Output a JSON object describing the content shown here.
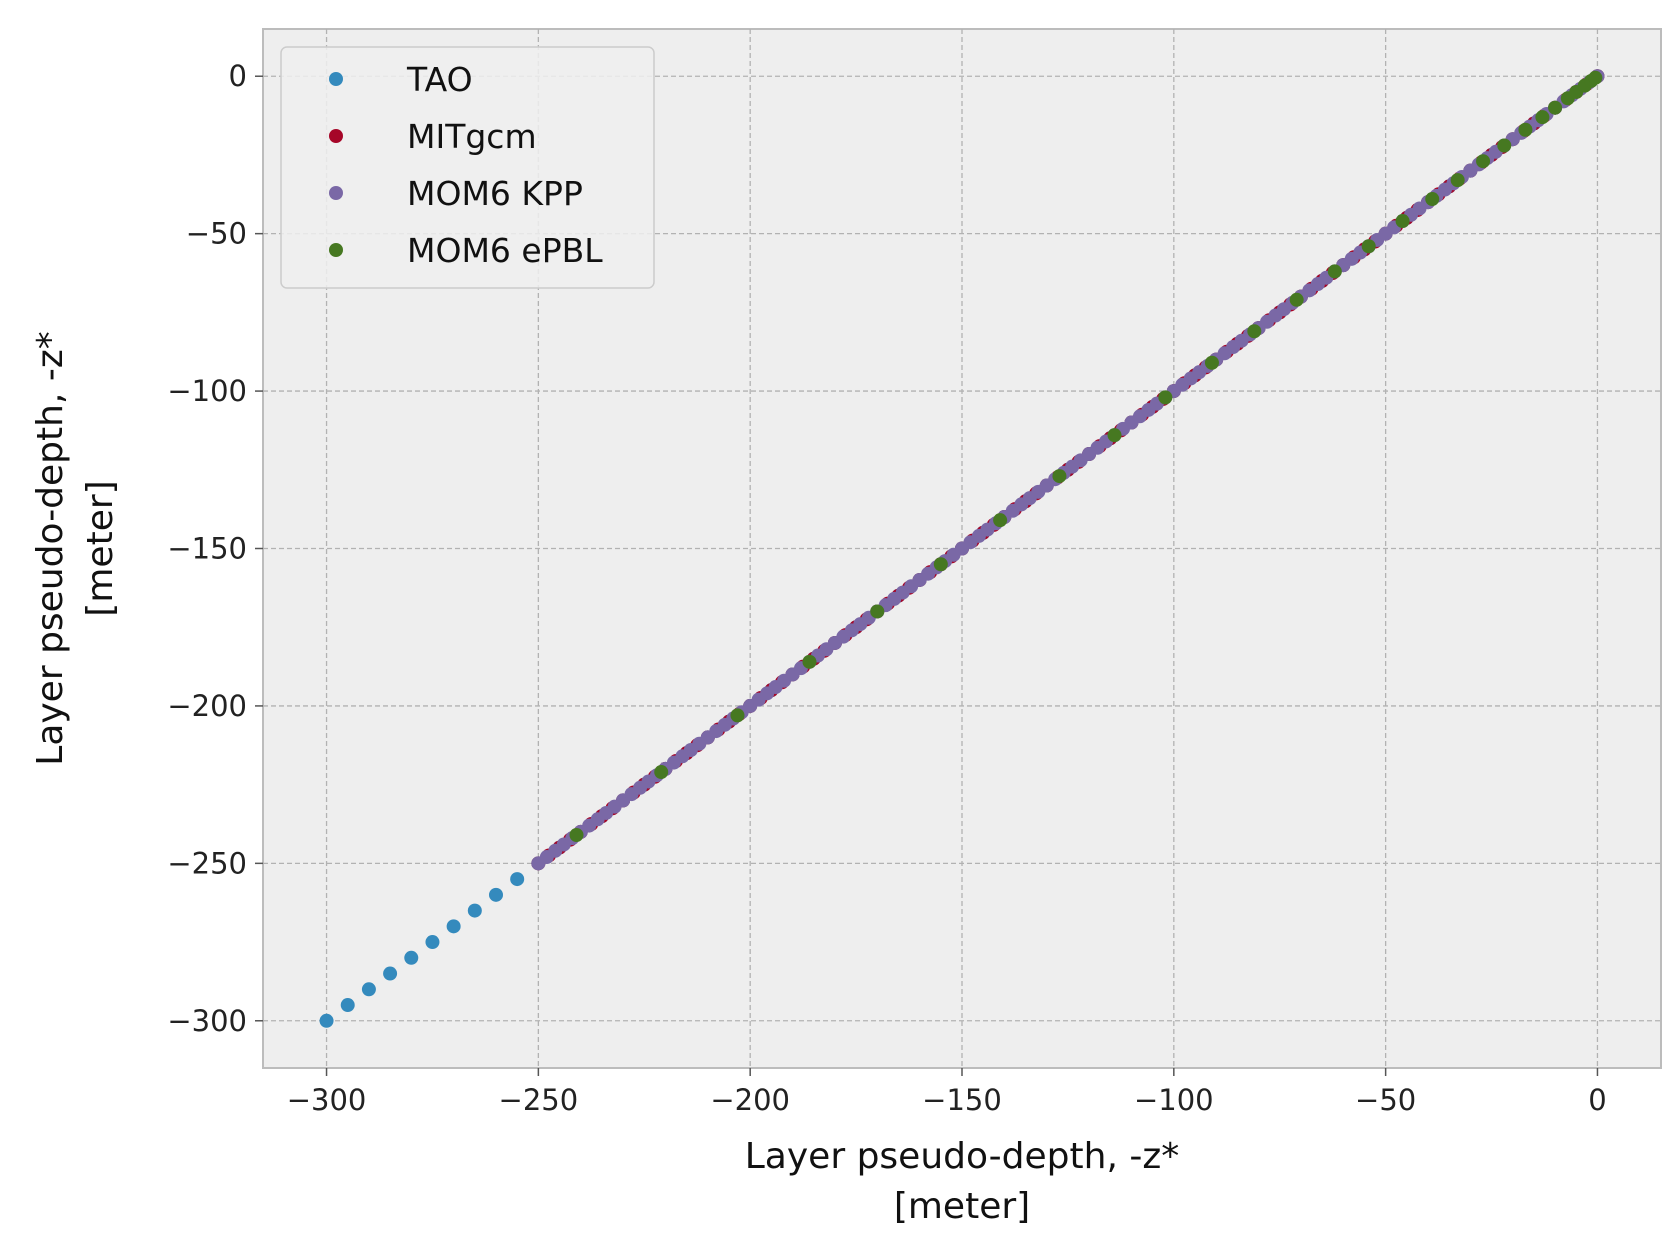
{
  "chart_data": {
    "type": "scatter",
    "title": "",
    "xlabel": [
      "Layer pseudo-depth, -z*",
      "[meter]"
    ],
    "ylabel": [
      "Layer pseudo-depth, -z*",
      "[meter]"
    ],
    "xlim": [
      -315,
      15
    ],
    "ylim": [
      -315,
      15
    ],
    "xticks": [
      -300,
      -250,
      -200,
      -150,
      -100,
      -50,
      0
    ],
    "yticks": [
      0,
      -50,
      -100,
      -150,
      -200,
      -250,
      -300
    ],
    "xtick_labels": [
      "−300",
      "−250",
      "−200",
      "−150",
      "−100",
      "−50",
      "0"
    ],
    "ytick_labels": [
      "0",
      "−50",
      "−100",
      "−150",
      "−200",
      "−250",
      "−300"
    ],
    "grid": true,
    "legend_position": "top-left",
    "series": [
      {
        "name": "TAO",
        "color": "#348abd",
        "points": {
          "start": -300,
          "end": 0,
          "step": 5
        }
      },
      {
        "name": "MITgcm",
        "color": "#a60628",
        "points": {
          "start": -250,
          "end": 0,
          "step": 2.5
        }
      },
      {
        "name": "MOM6 KPP",
        "color": "#7a68a6",
        "points": {
          "start": -250,
          "end": 0,
          "step": 2
        }
      },
      {
        "name": "MOM6 ePBL",
        "color": "#467821",
        "values": [
          -241,
          -221,
          -203,
          -186,
          -170,
          -155,
          -141,
          -127,
          -114,
          -102,
          -91,
          -81,
          -71,
          -62,
          -54,
          -46,
          -39,
          -33,
          -27,
          -22,
          -17,
          -13,
          -10,
          -7,
          -5,
          -3,
          -1.5,
          -0.5
        ]
      }
    ]
  }
}
